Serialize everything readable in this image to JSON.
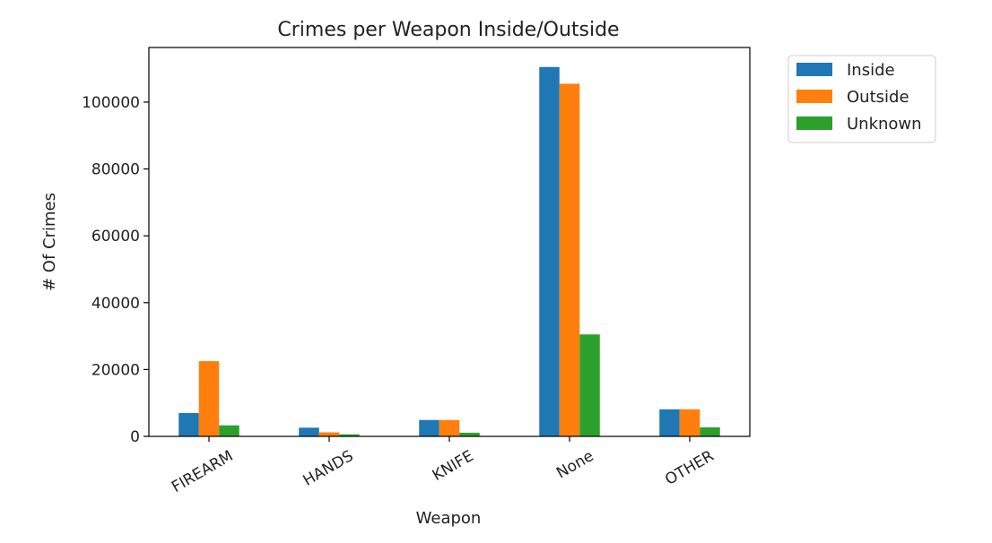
{
  "chart_data": {
    "type": "bar",
    "title": "Crimes per Weapon Inside/Outside",
    "xlabel": "Weapon",
    "ylabel": "# Of Crimes",
    "categories": [
      "FIREARM",
      "HANDS",
      "KNIFE",
      "None",
      "OTHER"
    ],
    "ylim": [
      0,
      110000
    ],
    "yticks": [
      0,
      20000,
      40000,
      60000,
      80000,
      100000
    ],
    "ytick_labels": [
      "0",
      "20000",
      "40000",
      "60000",
      "80000",
      "100000"
    ],
    "grid": false,
    "legend_position": "outside-top-right",
    "series": [
      {
        "name": "Inside",
        "color": "#1f77b4",
        "values": [
          7000,
          2600,
          4900,
          110500,
          8100
        ]
      },
      {
        "name": "Outside",
        "color": "#ff7f0e",
        "values": [
          22500,
          1200,
          4900,
          105500,
          8100
        ]
      },
      {
        "name": "Unknown",
        "color": "#2ca02c",
        "values": [
          3300,
          600,
          1100,
          30500,
          2700
        ]
      }
    ]
  }
}
